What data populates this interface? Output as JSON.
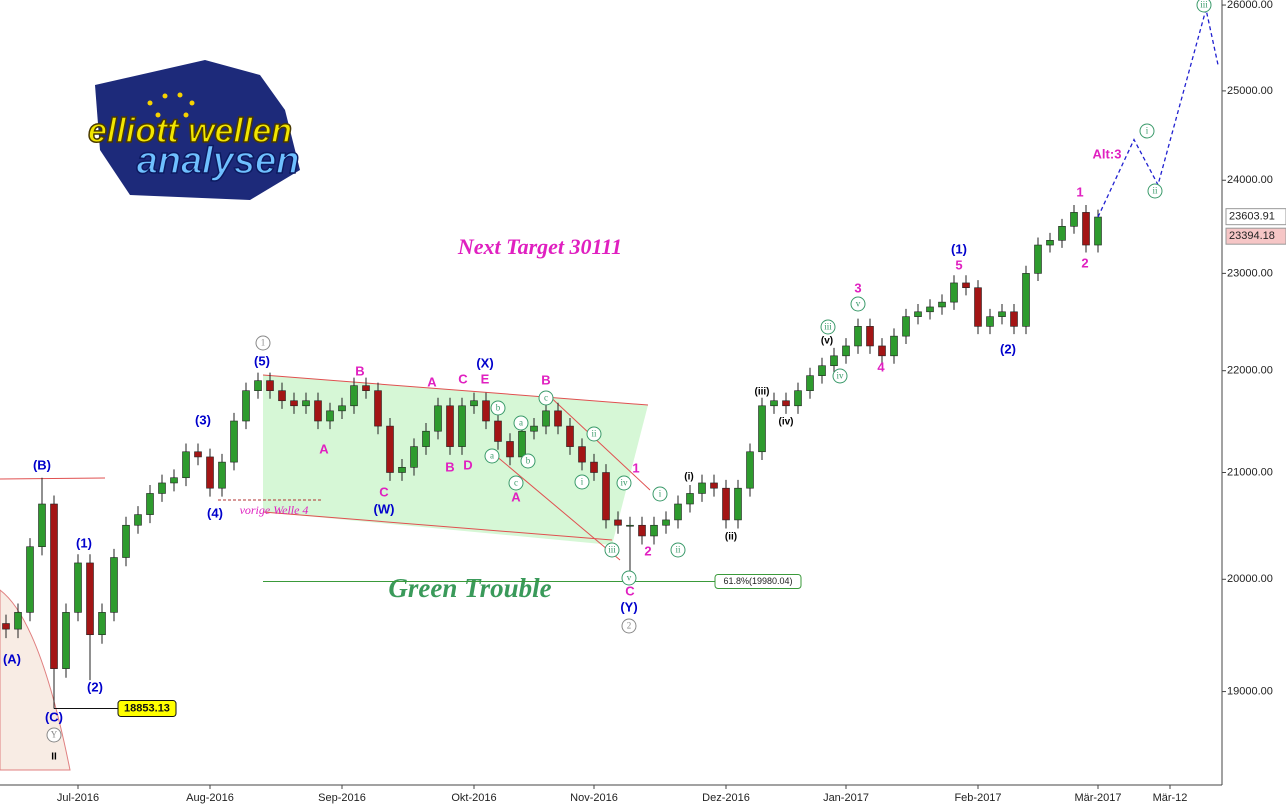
{
  "logo": {
    "line1": "elliott wellen",
    "line2": "analysen"
  },
  "chart_data": {
    "type": "candlestick",
    "categories": [
      null,
      null,
      null,
      null,
      null,
      null,
      "Jul-2016",
      null,
      null,
      null,
      null,
      null,
      null,
      null,
      null,
      null,
      null,
      "Aug-2016",
      null,
      null,
      null,
      null,
      null,
      null,
      null,
      null,
      null,
      null,
      "Sep-2016",
      null,
      null,
      null,
      null,
      null,
      null,
      null,
      null,
      null,
      null,
      "Okt-2016",
      null,
      null,
      null,
      null,
      null,
      null,
      null,
      null,
      null,
      "Nov-2016",
      null,
      null,
      null,
      null,
      null,
      null,
      null,
      null,
      null,
      null,
      "Dez-2016",
      null,
      null,
      null,
      null,
      null,
      null,
      null,
      null,
      null,
      "Jan-2017",
      null,
      null,
      null,
      null,
      null,
      null,
      null,
      null,
      null,
      null,
      "Feb-2017",
      null,
      null,
      null,
      null,
      null,
      null,
      null,
      null,
      null,
      "Mär-2017",
      null,
      null,
      null,
      null,
      null,
      "Mär-12",
      null,
      null,
      null,
      null
    ],
    "open": [
      19600,
      19550,
      19700,
      20300,
      20700,
      19200,
      19700,
      20150,
      19500,
      19700,
      20200,
      20500,
      20600,
      20800,
      20900,
      20950,
      21200,
      21150,
      20850,
      21100,
      21500,
      21800,
      21900,
      21800,
      21700,
      21650,
      21700,
      21500,
      21600,
      21650,
      21850,
      21800,
      21450,
      21000,
      21050,
      21250,
      21400,
      21650,
      21250,
      21650,
      21700,
      21500,
      21300,
      21150,
      21400,
      21450,
      21600,
      21450,
      21250,
      21100,
      21000,
      20550,
      20500,
      20500,
      20400,
      20500,
      20550,
      20700,
      20800,
      20900,
      20850,
      20550,
      20850,
      21200,
      21650,
      21700,
      21650,
      21800,
      21950,
      22050,
      22150,
      22250,
      22450,
      22250,
      22150,
      22350,
      22550,
      22600,
      22650,
      22700,
      22900,
      22850,
      22450,
      22550,
      22600,
      22450,
      23000,
      23300,
      23350,
      23500,
      23650,
      23300,
      null,
      null,
      null,
      null,
      null,
      null,
      null,
      null,
      null,
      null
    ],
    "high": [
      19680,
      19780,
      20380,
      20950,
      20780,
      19780,
      20230,
      20230,
      19780,
      20280,
      20580,
      20680,
      20880,
      20980,
      21030,
      21280,
      21280,
      21230,
      21180,
      21580,
      21880,
      21980,
      21980,
      21880,
      21780,
      21780,
      21780,
      21680,
      21730,
      21930,
      21930,
      21880,
      21530,
      21130,
      21330,
      21480,
      21730,
      21730,
      21730,
      21780,
      21780,
      21580,
      21380,
      21480,
      21530,
      21680,
      21680,
      21530,
      21330,
      21180,
      21080,
      20630,
      20580,
      20580,
      20580,
      20630,
      20780,
      20880,
      20980,
      20980,
      20930,
      20930,
      21280,
      21730,
      21780,
      21780,
      21880,
      22030,
      22130,
      22230,
      22330,
      22530,
      22530,
      22330,
      22430,
      22630,
      22680,
      22730,
      22780,
      22980,
      22980,
      22930,
      22630,
      22680,
      22680,
      23080,
      23380,
      23430,
      23580,
      23730,
      23730,
      23680,
      null,
      null,
      null,
      null,
      null,
      null,
      null,
      null,
      null,
      null
    ],
    "low": [
      19470,
      19470,
      19620,
      20220,
      18853,
      19120,
      19620,
      19100,
      19420,
      19620,
      20120,
      20420,
      20520,
      20720,
      20820,
      20870,
      21070,
      20770,
      20770,
      21020,
      21420,
      21720,
      21720,
      21620,
      21570,
      21570,
      21420,
      21420,
      21520,
      21570,
      21720,
      21370,
      20920,
      20920,
      20970,
      21170,
      21320,
      21170,
      21170,
      21570,
      21420,
      21220,
      21070,
      21070,
      21320,
      21370,
      21370,
      21170,
      21020,
      20920,
      20470,
      20420,
      20000,
      20320,
      20320,
      20420,
      20470,
      20620,
      20720,
      20770,
      20470,
      20470,
      20770,
      21120,
      21570,
      21570,
      21570,
      21720,
      21870,
      21970,
      22070,
      22170,
      22170,
      22070,
      22070,
      22270,
      22470,
      22520,
      22570,
      22620,
      22770,
      22370,
      22370,
      22470,
      22370,
      22370,
      22920,
      23220,
      23270,
      23420,
      23220,
      23220,
      null,
      null,
      null,
      null,
      null,
      null,
      null,
      null,
      null,
      null
    ],
    "close": [
      19550,
      19700,
      20300,
      20700,
      19200,
      19700,
      20150,
      19500,
      19700,
      20200,
      20500,
      20600,
      20800,
      20900,
      20950,
      21200,
      21150,
      20850,
      21100,
      21500,
      21800,
      21900,
      21800,
      21700,
      21650,
      21700,
      21500,
      21600,
      21650,
      21850,
      21800,
      21450,
      21000,
      21050,
      21250,
      21400,
      21650,
      21250,
      21650,
      21700,
      21500,
      21300,
      21150,
      21400,
      21450,
      21600,
      21450,
      21250,
      21100,
      21000,
      20550,
      20500,
      20500,
      20400,
      20500,
      20550,
      20700,
      20800,
      20900,
      20850,
      20550,
      20850,
      21200,
      21650,
      21700,
      21650,
      21800,
      21950,
      22050,
      22150,
      22250,
      22450,
      22250,
      22150,
      22350,
      22550,
      22600,
      22650,
      22700,
      22900,
      22850,
      22450,
      22550,
      22600,
      22450,
      23000,
      23300,
      23350,
      23500,
      23650,
      23300,
      23600,
      null,
      null,
      null,
      null,
      null,
      null,
      null,
      null,
      null,
      null
    ],
    "up_color": "#2e9b2e",
    "down_color": "#a31515",
    "ylim": [
      18206,
      26060
    ],
    "log_scale": true,
    "yticks": [
      {
        "value": 19000,
        "label": "19000.00"
      },
      {
        "value": 20000,
        "label": "20000.00"
      },
      {
        "value": 21000,
        "label": "21000.00"
      },
      {
        "value": 22000,
        "label": "22000.00"
      },
      {
        "value": 23000,
        "label": "23000.00"
      },
      {
        "value": 24000,
        "label": "24000.00"
      },
      {
        "value": 25000,
        "label": "25000.00"
      },
      {
        "value": 26000,
        "label": "26000.00"
      }
    ],
    "projection": {
      "color": "#2020d0",
      "x": [
        91,
        94,
        96,
        100,
        101
      ],
      "values": [
        23600,
        24450,
        23950,
        25950,
        25300
      ]
    },
    "price_labels": [
      23603.91,
      23394.18
    ],
    "low_label": 18853.13,
    "fib_level": {
      "value": 19980.04,
      "label": "61.8%(19980.04)",
      "color": "#3a9a3a"
    },
    "title": "Next Target 30111",
    "zone_label": "Green Trouble",
    "note": "vorige Welle 4",
    "annotations": [
      {
        "text": "(B)",
        "color": "#0000cc"
      },
      {
        "text": "(A)",
        "color": "#0000cc"
      },
      {
        "text": "(C)",
        "color": "#0000cc"
      },
      {
        "text": "(1)",
        "color": "#0000cc"
      },
      {
        "text": "(2)",
        "color": "#0000cc"
      },
      {
        "text": "(3)",
        "color": "#0000cc"
      },
      {
        "text": "(4)",
        "color": "#0000cc"
      },
      {
        "text": "(5)",
        "color": "#0000cc"
      },
      {
        "text": "(W)",
        "color": "#0000cc"
      },
      {
        "text": "(X)",
        "color": "#0000cc"
      },
      {
        "text": "(Y)",
        "color": "#0000cc"
      },
      {
        "text": "(1)",
        "color": "#0000cc"
      },
      {
        "text": "(2)",
        "color": "#0000cc"
      },
      {
        "text": "B",
        "color": "#e020c0"
      },
      {
        "text": "A",
        "color": "#e020c0"
      },
      {
        "text": "C",
        "color": "#e020c0"
      },
      {
        "text": "E",
        "color": "#e020c0"
      },
      {
        "text": "B",
        "color": "#e020c0"
      },
      {
        "text": "A",
        "color": "#e020c0"
      },
      {
        "text": "C",
        "color": "#e020c0"
      },
      {
        "text": "B",
        "color": "#e020c0"
      },
      {
        "text": "D",
        "color": "#e020c0"
      },
      {
        "text": "A",
        "color": "#e020c0"
      },
      {
        "text": "1",
        "color": "#e020c0"
      },
      {
        "text": "2",
        "color": "#e020c0"
      },
      {
        "text": "C",
        "color": "#e020c0"
      },
      {
        "text": "3",
        "color": "#e020c0"
      },
      {
        "text": "5",
        "color": "#e020c0"
      },
      {
        "text": "4",
        "color": "#e020c0"
      },
      {
        "text": "1",
        "color": "#e020c0"
      },
      {
        "text": "2",
        "color": "#e020c0"
      },
      {
        "text": "Alt:3",
        "color": "#e020c0"
      },
      {
        "text": "(i)",
        "color": "#000000"
      },
      {
        "text": "(ii)",
        "color": "#000000"
      },
      {
        "text": "(iii)",
        "color": "#000000"
      },
      {
        "text": "(iv)",
        "color": "#000000"
      },
      {
        "text": "(v)",
        "color": "#000000"
      },
      {
        "text": "II",
        "color": "#000000"
      },
      {
        "text": "v",
        "color": "#3a9a6a",
        "circled": true
      },
      {
        "text": "iii",
        "color": "#3a9a6a",
        "circled": true
      },
      {
        "text": "iv",
        "color": "#3a9a6a",
        "circled": true
      },
      {
        "text": "b",
        "color": "#3a9a6a",
        "circled": true
      },
      {
        "text": "a",
        "color": "#3a9a6a",
        "circled": true
      },
      {
        "text": "a",
        "color": "#3a9a6a",
        "circled": true
      },
      {
        "text": "c",
        "color": "#3a9a6a",
        "circled": true
      },
      {
        "text": "b",
        "color": "#3a9a6a",
        "circled": true
      },
      {
        "text": "c",
        "color": "#3a9a6a",
        "circled": true
      },
      {
        "text": "ii",
        "color": "#3a9a6a",
        "circled": true
      },
      {
        "text": "i",
        "color": "#3a9a6a",
        "circled": true
      },
      {
        "text": "iv",
        "color": "#3a9a6a",
        "circled": true
      },
      {
        "text": "iii",
        "color": "#3a9a6a",
        "circled": true
      },
      {
        "text": "v",
        "color": "#3a9a6a",
        "circled": true
      },
      {
        "text": "i",
        "color": "#3a9a6a",
        "circled": true
      },
      {
        "text": "ii",
        "color": "#3a9a6a",
        "circled": true
      },
      {
        "text": "i",
        "color": "#3a9a6a",
        "circled": true
      },
      {
        "text": "ii",
        "color": "#3a9a6a",
        "circled": true
      },
      {
        "text": "iii",
        "color": "#3a9a6a",
        "circled": true
      },
      {
        "text": "1",
        "color": "#888888",
        "circled": true
      },
      {
        "text": "2",
        "color": "#888888",
        "circled": true
      },
      {
        "text": "Y",
        "color": "#888888",
        "circled": true
      }
    ]
  }
}
